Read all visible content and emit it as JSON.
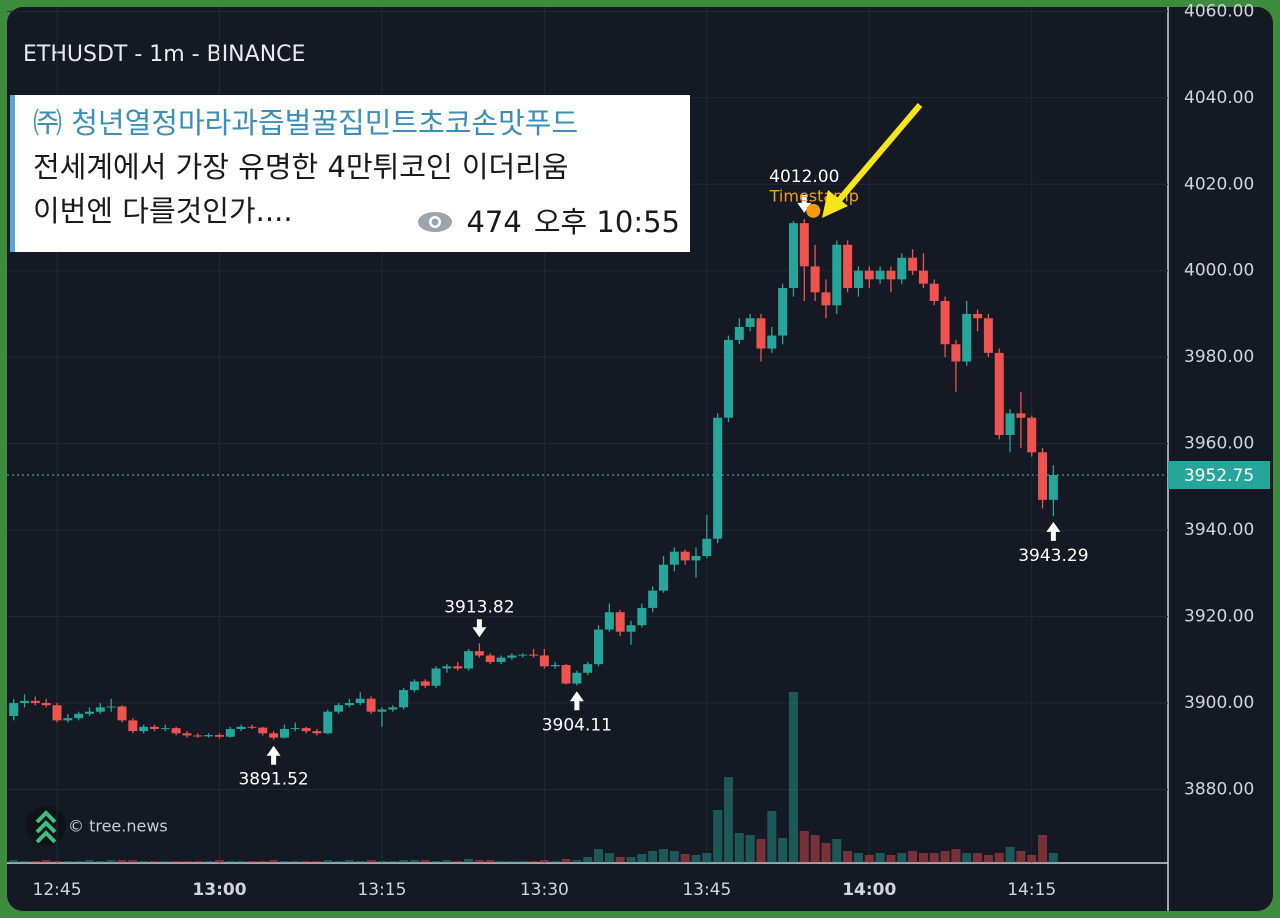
{
  "chart_data": {
    "type": "candlestick",
    "title": "ETHUSDT - 1m - BINANCE",
    "watermark": "© tree.news",
    "up_color": "#26a69a",
    "down_color": "#ef5350",
    "ylim": [
      3863,
      4061
    ],
    "yticks": [
      {
        "value": 3880,
        "label": "3880.00"
      },
      {
        "value": 3900,
        "label": "3900.00"
      },
      {
        "value": 3920,
        "label": "3920.00"
      },
      {
        "value": 3940,
        "label": "3940.00"
      },
      {
        "value": 3960,
        "label": "3960.00"
      },
      {
        "value": 3980,
        "label": "3980.00"
      },
      {
        "value": 4000,
        "label": "4000.00"
      },
      {
        "value": 4020,
        "label": "4020.00"
      },
      {
        "value": 4040,
        "label": "4040.00"
      },
      {
        "value": 4060,
        "label": "4060.00"
      }
    ],
    "grid": true,
    "categories": [
      null,
      null,
      null,
      null,
      "12:45",
      null,
      null,
      null,
      null,
      null,
      null,
      null,
      null,
      null,
      null,
      null,
      null,
      null,
      null,
      "13:00",
      null,
      null,
      null,
      null,
      null,
      null,
      null,
      null,
      null,
      null,
      null,
      null,
      null,
      null,
      "13:15",
      null,
      null,
      null,
      null,
      null,
      null,
      null,
      null,
      null,
      null,
      null,
      null,
      null,
      null,
      "13:30",
      null,
      null,
      null,
      null,
      null,
      null,
      null,
      null,
      null,
      null,
      null,
      null,
      null,
      null,
      "13:45",
      null,
      null,
      null,
      null,
      null,
      null,
      null,
      null,
      null,
      null,
      null,
      null,
      null,
      null,
      "14:00",
      null,
      null,
      null,
      null,
      null,
      null,
      null,
      null,
      null,
      null,
      null,
      null,
      null,
      null,
      "14:15",
      null,
      null
    ],
    "candles": [
      [
        3897,
        3901,
        3896,
        3900
      ],
      [
        3900,
        3902,
        3899,
        3900.5
      ],
      [
        3900.5,
        3901.5,
        3899.5,
        3900
      ],
      [
        3900,
        3901,
        3899,
        3899.5
      ],
      [
        3899.5,
        3900,
        3895.5,
        3896
      ],
      [
        3896,
        3897.5,
        3895.5,
        3896.5
      ],
      [
        3896.5,
        3898,
        3896,
        3897.5
      ],
      [
        3897.5,
        3899,
        3897,
        3898
      ],
      [
        3898,
        3900,
        3897.5,
        3899
      ],
      [
        3899,
        3901,
        3898,
        3899.2
      ],
      [
        3899.2,
        3899.5,
        3895.5,
        3896
      ],
      [
        3896,
        3896.5,
        3893,
        3893.5
      ],
      [
        3893.5,
        3895,
        3893,
        3894.5
      ],
      [
        3894.5,
        3895,
        3893.5,
        3894
      ],
      [
        3894,
        3895,
        3893.5,
        3894.2
      ],
      [
        3894.2,
        3894.5,
        3892.5,
        3893
      ],
      [
        3893,
        3893.5,
        3892,
        3892.5
      ],
      [
        3892.5,
        3893,
        3892,
        3892.3
      ],
      [
        3892.3,
        3893,
        3892,
        3892.6
      ],
      [
        3892.6,
        3893,
        3891.8,
        3892.2
      ],
      [
        3892.2,
        3894.5,
        3892,
        3894
      ],
      [
        3894,
        3895,
        3893.5,
        3894.5
      ],
      [
        3894.5,
        3895,
        3894,
        3894.3
      ],
      [
        3894.3,
        3894.5,
        3892.5,
        3893
      ],
      [
        3893,
        3893.5,
        3891.52,
        3892
      ],
      [
        3892,
        3895,
        3891.8,
        3894
      ],
      [
        3894,
        3895.5,
        3893.5,
        3894.2
      ],
      [
        3894.2,
        3894.5,
        3893,
        3893.5
      ],
      [
        3893.5,
        3894,
        3892.5,
        3893
      ],
      [
        3893,
        3898.5,
        3892.8,
        3898
      ],
      [
        3898,
        3900,
        3897.5,
        3899.5
      ],
      [
        3899.5,
        3901,
        3899,
        3900
      ],
      [
        3900,
        3902.5,
        3899.5,
        3901
      ],
      [
        3901,
        3901.5,
        3897.5,
        3898
      ],
      [
        3898,
        3899,
        3894.5,
        3898.5
      ],
      [
        3898.5,
        3899.5,
        3898,
        3899
      ],
      [
        3899,
        3903.5,
        3898.5,
        3903
      ],
      [
        3903,
        3905.5,
        3902.5,
        3905
      ],
      [
        3905,
        3905.5,
        3903.5,
        3904
      ],
      [
        3904,
        3908.5,
        3903.5,
        3908
      ],
      [
        3908,
        3909,
        3907,
        3908.5
      ],
      [
        3908.5,
        3909.5,
        3907.5,
        3908
      ],
      [
        3908,
        3912.5,
        3907.5,
        3912
      ],
      [
        3912,
        3913.82,
        3910.5,
        3911
      ],
      [
        3911,
        3911.5,
        3909,
        3909.5
      ],
      [
        3909.5,
        3911,
        3909,
        3910.5
      ],
      [
        3910.5,
        3911.5,
        3910,
        3911
      ],
      [
        3911,
        3911.5,
        3910.5,
        3911.2
      ],
      [
        3911.2,
        3912.5,
        3910.5,
        3911
      ],
      [
        3911,
        3912.5,
        3908,
        3908.5
      ],
      [
        3908.5,
        3909.5,
        3908,
        3908.8
      ],
      [
        3908.8,
        3909,
        3904.3,
        3904.5
      ],
      [
        3904.5,
        3907.5,
        3904.11,
        3907
      ],
      [
        3907,
        3909.5,
        3906.5,
        3909
      ],
      [
        3909,
        3918,
        3908.5,
        3917
      ],
      [
        3917,
        3923,
        3916.5,
        3921
      ],
      [
        3921,
        3921.5,
        3915.5,
        3916.5
      ],
      [
        3916.5,
        3919,
        3913.5,
        3918
      ],
      [
        3918,
        3923,
        3917.5,
        3922
      ],
      [
        3922,
        3927,
        3921,
        3926
      ],
      [
        3926,
        3934,
        3925.5,
        3932
      ],
      [
        3932,
        3936,
        3930.5,
        3935
      ],
      [
        3935,
        3935.5,
        3932,
        3933
      ],
      [
        3933,
        3936,
        3929,
        3934
      ],
      [
        3934,
        3943.5,
        3933.5,
        3938
      ],
      [
        3938,
        3967,
        3937,
        3966
      ],
      [
        3966,
        3985,
        3965,
        3984
      ],
      [
        3984,
        3989,
        3983,
        3987
      ],
      [
        3987,
        3990,
        3986,
        3989
      ],
      [
        3989,
        3990,
        3979,
        3982
      ],
      [
        3982,
        3987,
        3981,
        3985
      ],
      [
        3985,
        3997,
        3983,
        3996
      ],
      [
        3996,
        4011.5,
        3994,
        4011
      ],
      [
        4011,
        4012,
        3993,
        4001
      ],
      [
        4001,
        4006,
        3993,
        3995
      ],
      [
        3995,
        3998,
        3989,
        3992
      ],
      [
        3992,
        4007,
        3990,
        4006
      ],
      [
        4006,
        4007,
        3995,
        3996
      ],
      [
        3996,
        4001,
        3994,
        4000
      ],
      [
        4000,
        4001,
        3996,
        3998
      ],
      [
        3998,
        4001,
        3997,
        4000
      ],
      [
        4000,
        4001,
        3995,
        3998
      ],
      [
        3998,
        4004,
        3997,
        4003
      ],
      [
        4003,
        4005,
        3999,
        4000
      ],
      [
        4000,
        4004,
        3996,
        3997
      ],
      [
        3997,
        3998,
        3992,
        3993
      ],
      [
        3993,
        3994,
        3980,
        3983
      ],
      [
        3983,
        3984,
        3972,
        3979
      ],
      [
        3979,
        3993,
        3978,
        3990
      ],
      [
        3990,
        3991,
        3986,
        3989
      ],
      [
        3989,
        3990,
        3980,
        3981
      ],
      [
        3981,
        3982,
        3961,
        3962
      ],
      [
        3962,
        3968,
        3958,
        3967
      ],
      [
        3967,
        3972,
        3959,
        3966
      ],
      [
        3966,
        3966.5,
        3957,
        3958
      ],
      [
        3958,
        3959,
        3945,
        3947
      ],
      [
        3947,
        3955,
        3943.29,
        3952.75
      ]
    ],
    "volume": [
      3,
      2,
      2,
      3,
      2,
      2,
      2,
      3,
      2,
      3,
      3,
      3,
      2,
      2,
      2,
      2,
      2,
      2,
      2,
      3,
      2,
      2,
      2,
      2,
      3,
      2,
      2,
      2,
      2,
      3,
      2,
      3,
      2,
      3,
      2,
      2,
      3,
      3,
      3,
      2,
      3,
      2,
      4,
      3,
      3,
      2,
      2,
      2,
      2,
      3,
      2,
      4,
      3,
      6,
      14,
      10,
      6,
      6,
      9,
      12,
      14,
      12,
      9,
      8,
      10,
      53,
      86,
      30,
      28,
      24,
      52,
      25,
      171,
      32,
      28,
      20,
      24,
      12,
      10,
      8,
      10,
      8,
      10,
      12,
      10,
      10,
      12,
      14,
      10,
      10,
      8,
      10,
      16,
      12,
      8,
      28,
      10
    ],
    "markers": [
      {
        "value": 3891.52,
        "label": "3891.52"
      },
      {
        "value": 3913.82,
        "label": "3913.82"
      },
      {
        "value": 3904.11,
        "label": "3904.11"
      },
      {
        "value": 4012,
        "label": "4012.00",
        "note": "Timestamp"
      },
      {
        "value": 3943.29,
        "label": "3943.29"
      }
    ],
    "last_price": {
      "value": 3952.75,
      "label": "3952.75"
    }
  },
  "message": {
    "sender": "㈜ 청년열정마라과즙벌꿀집민트초코손맛푸드",
    "lines": [
      "전세계에서 가장 유명한 4만튀코인 이더리움",
      "이번엔 다를것인가...."
    ],
    "views": "474",
    "time": "오후 10:55"
  }
}
